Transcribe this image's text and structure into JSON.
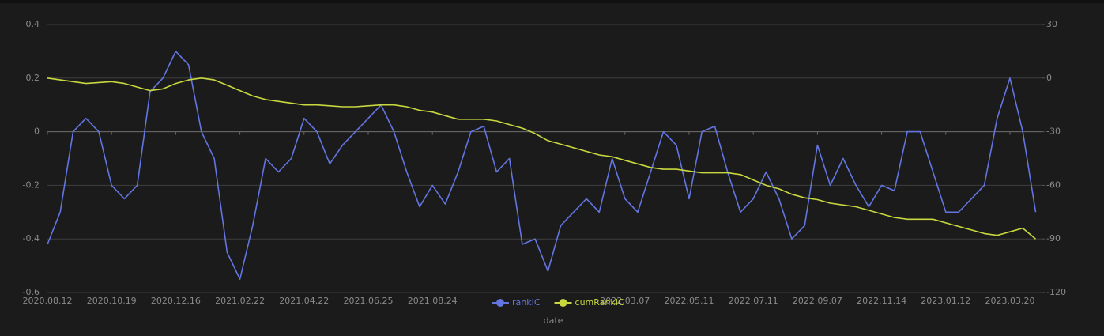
{
  "chart_data": {
    "type": "line",
    "x_label": "date",
    "categories": [
      "2020.08.12",
      null,
      null,
      null,
      null,
      "2020.10.19",
      null,
      null,
      null,
      null,
      "2020.12.16",
      null,
      null,
      null,
      null,
      "2021.02.22",
      null,
      null,
      null,
      null,
      "2021.04.22",
      null,
      null,
      null,
      null,
      "2021.06.25",
      null,
      null,
      null,
      null,
      "2021.08.24",
      null,
      null,
      null,
      null,
      null,
      null,
      null,
      null,
      null,
      null,
      null,
      null,
      null,
      null,
      "2022.03.07",
      null,
      null,
      null,
      null,
      "2022.05.11",
      null,
      null,
      null,
      null,
      "2022.07.11",
      null,
      null,
      null,
      null,
      "2022.09.07",
      null,
      null,
      null,
      null,
      "2022.11.14",
      null,
      null,
      null,
      null,
      "2023.01.12",
      null,
      null,
      null,
      null,
      "2023.03.20",
      null,
      null
    ],
    "series": [
      {
        "name": "rankIC",
        "color": "#6275e0",
        "axis": "y",
        "values": [
          -0.42,
          -0.3,
          0.0,
          0.05,
          0.0,
          -0.2,
          -0.25,
          -0.2,
          0.15,
          0.2,
          0.3,
          0.25,
          0.0,
          -0.1,
          -0.45,
          -0.55,
          -0.35,
          -0.1,
          -0.15,
          -0.1,
          0.05,
          0.0,
          -0.12,
          -0.05,
          0.0,
          0.05,
          0.1,
          0.0,
          -0.15,
          -0.28,
          -0.2,
          -0.27,
          -0.15,
          0.0,
          0.02,
          -0.15,
          -0.1,
          -0.42,
          -0.4,
          -0.52,
          -0.35,
          -0.3,
          -0.25,
          -0.3,
          -0.1,
          -0.25,
          -0.3,
          -0.15,
          0.0,
          -0.05,
          -0.25,
          0.0,
          0.02,
          -0.15,
          -0.3,
          -0.25,
          -0.15,
          -0.25,
          -0.4,
          -0.35,
          -0.05,
          -0.2,
          -0.1,
          -0.2,
          -0.28,
          -0.2,
          -0.22,
          0.0,
          0.0,
          -0.15,
          -0.3,
          -0.3,
          -0.25,
          -0.2,
          0.05,
          0.2,
          0.0,
          -0.3
        ]
      },
      {
        "name": "cumRankIC",
        "color": "#c8d83e",
        "axis": "y2",
        "values": [
          0,
          -1,
          -2,
          -3,
          -2.5,
          -2,
          -3,
          -5,
          -7,
          -6,
          -3,
          -1,
          0,
          -1,
          -4,
          -7,
          -10,
          -12,
          -13,
          -14,
          -15,
          -15,
          -15.5,
          -16,
          -16,
          -15.5,
          -15,
          -15,
          -16,
          -18,
          -19,
          -21,
          -23,
          -23,
          -23,
          -24,
          -26,
          -28,
          -31,
          -35,
          -37,
          -39,
          -41,
          -43,
          -44,
          -46,
          -48,
          -50,
          -51,
          -51,
          -52,
          -53,
          -53,
          -53,
          -54,
          -57,
          -60,
          -62,
          -65,
          -67,
          -68,
          -70,
          -71,
          -72,
          -74,
          -76,
          -78,
          -79,
          -79,
          -79,
          -81,
          -83,
          -85,
          -87,
          -88,
          -86,
          -84,
          -90
        ]
      }
    ],
    "ylim": [
      -0.6,
      0.4
    ],
    "yticks": [
      -0.6,
      -0.4,
      -0.2,
      0,
      0.2,
      0.4
    ],
    "y2lim": [
      -120,
      30
    ],
    "y2ticks": [
      -120,
      -90,
      -60,
      -30,
      0,
      30
    ],
    "grid": true,
    "legend": "bottom"
  }
}
